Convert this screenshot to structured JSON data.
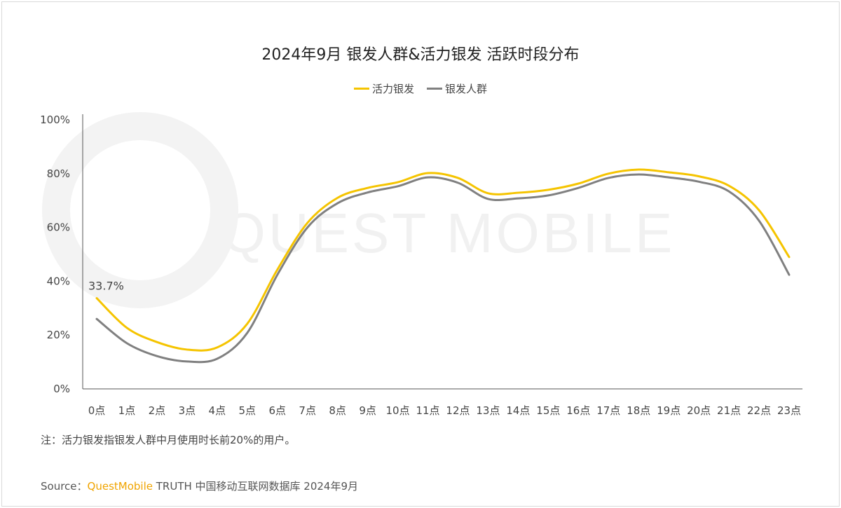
{
  "chart_data": {
    "type": "line",
    "title": "2024年9月 银发人群&活力银发 活跃时段分布",
    "categories": [
      "0点",
      "1点",
      "2点",
      "3点",
      "4点",
      "5点",
      "6点",
      "7点",
      "8点",
      "9点",
      "10点",
      "11点",
      "12点",
      "13点",
      "14点",
      "15点",
      "16点",
      "17点",
      "18点",
      "19点",
      "20点",
      "21点",
      "22点",
      "23点"
    ],
    "ylim": [
      0,
      100
    ],
    "yticks": [
      "0%",
      "20%",
      "40%",
      "60%",
      "80%",
      "100%"
    ],
    "grid": false,
    "legend_position": "top",
    "series": [
      {
        "name": "活力银发",
        "color": "#F5C400",
        "values": [
          33.7,
          22.7,
          17.4,
          14.6,
          15.4,
          24.2,
          44.3,
          61.7,
          71.0,
          74.7,
          76.8,
          80.2,
          78.4,
          72.7,
          72.9,
          74.0,
          76.3,
          80.0,
          81.5,
          80.5,
          79.0,
          75.5,
          66.4,
          49.0
        ]
      },
      {
        "name": "银发人群",
        "color": "#808080",
        "values": [
          26.0,
          17.0,
          12.2,
          10.2,
          11.2,
          20.8,
          42.4,
          60.0,
          69.0,
          73.0,
          75.3,
          78.6,
          76.6,
          70.6,
          70.8,
          71.9,
          74.7,
          78.4,
          79.7,
          78.6,
          77.0,
          73.4,
          62.5,
          42.4
        ]
      }
    ],
    "annotations": [
      {
        "series": "活力银发",
        "category": "0点",
        "label": "33.7%"
      }
    ]
  },
  "watermark": "QUEST MOBILE",
  "note": "注：活力银发指银发人群中月使用时长前20%的用户。",
  "source": {
    "prefix": "Source：",
    "brand": "QuestMobile",
    "rest": " TRUTH 中国移动互联网数据库 2024年9月"
  }
}
